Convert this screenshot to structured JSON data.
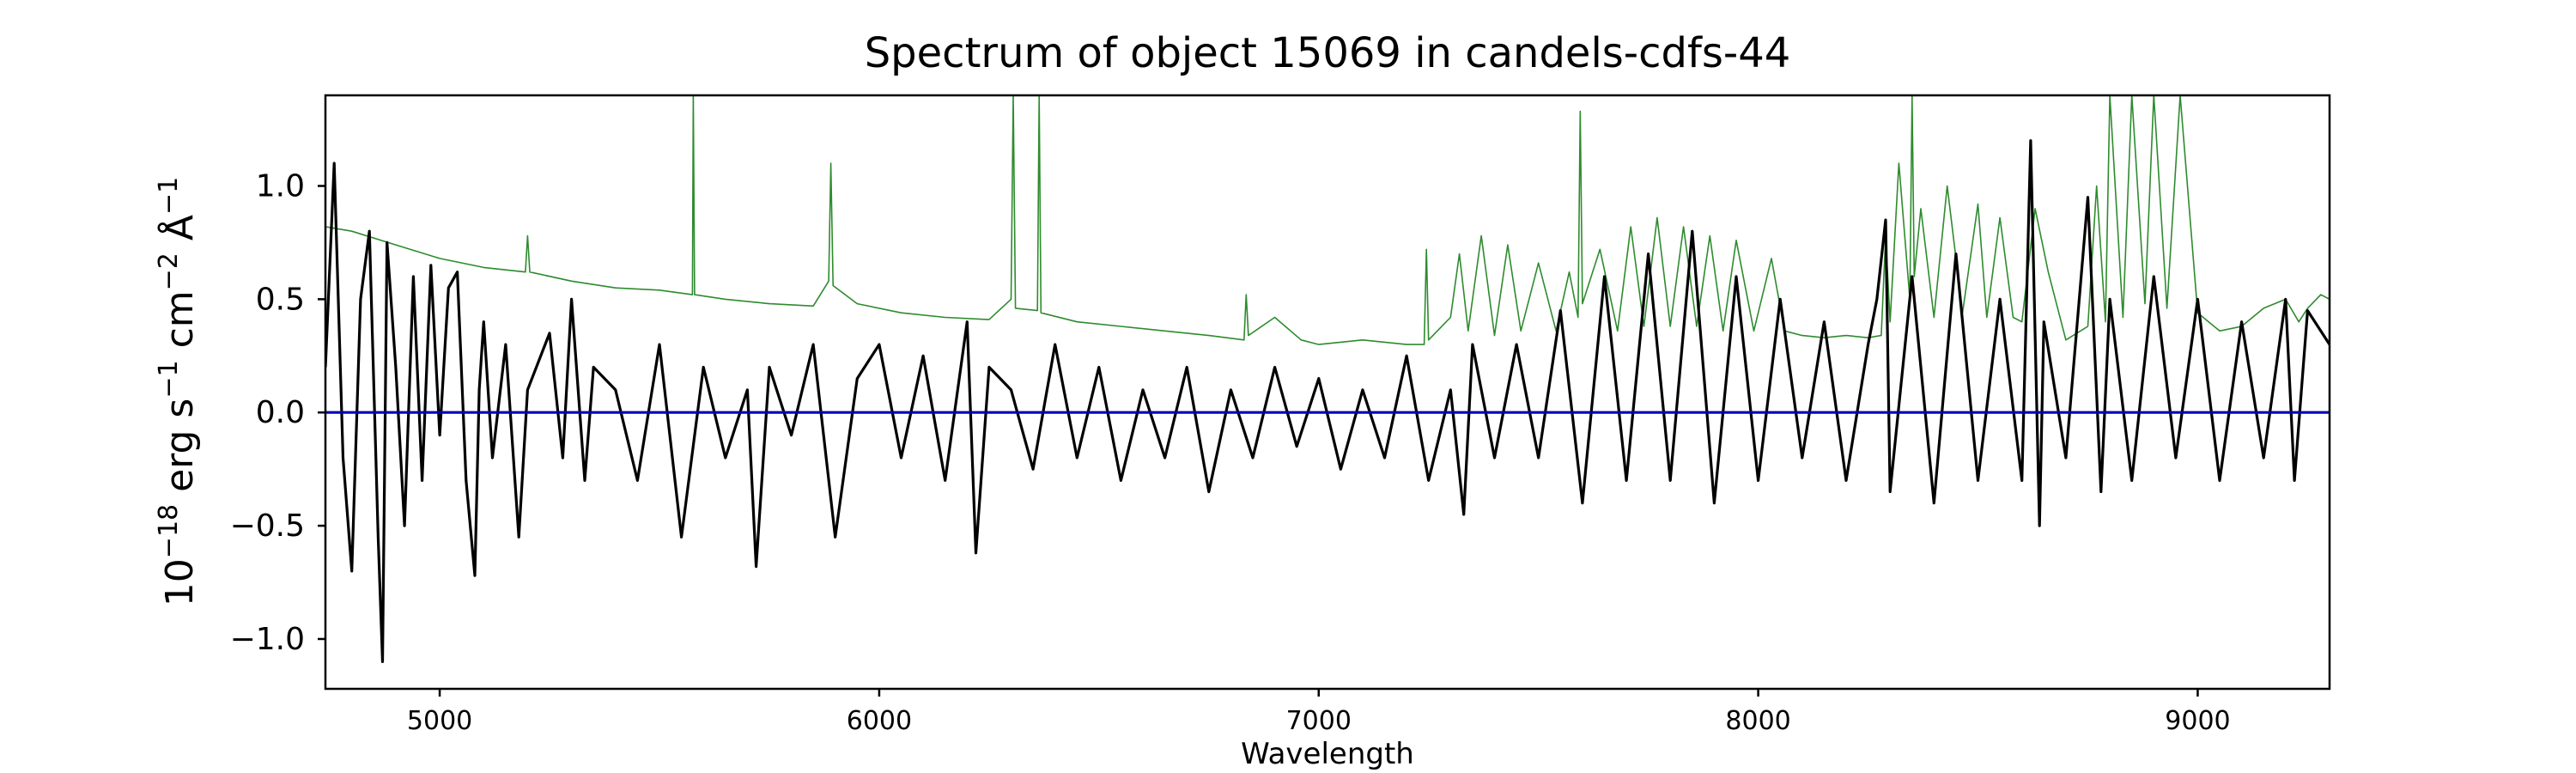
{
  "chart_data": {
    "type": "line",
    "title": "Spectrum of object 15069 in candels-cdfs-44",
    "xlabel": "Wavelength",
    "ylabel_base": "10",
    "ylabel_exp": "−18",
    "ylabel_rest": " erg s",
    "ylabel_unit_exp1": "−1",
    "ylabel_cm": " cm",
    "ylabel_unit_exp2": "−2",
    "ylabel_ang": " Å",
    "ylabel_unit_exp3": "−1",
    "xlim": [
      4740,
      9300
    ],
    "ylim": [
      -1.22,
      1.4
    ],
    "x_ticks": [
      5000,
      6000,
      7000,
      8000,
      9000
    ],
    "x_tick_labels": [
      "5000",
      "6000",
      "7000",
      "8000",
      "9000"
    ],
    "y_ticks": [
      -1.0,
      -0.5,
      0.0,
      0.5,
      1.0
    ],
    "y_tick_labels": [
      "−1.0",
      "−0.5",
      "0.0",
      "0.5",
      "1.0"
    ],
    "grid": false,
    "colors": {
      "flux": "#000000",
      "sky": "#2e8b2e",
      "zero": "#0000bb"
    },
    "series": [
      {
        "key": "sky",
        "x": [
          4740,
          4800,
          4900,
          5000,
          5100,
          5195,
          5200,
          5205,
          5300,
          5400,
          5500,
          5575,
          5577,
          5580,
          5650,
          5750,
          5850,
          5885,
          5890,
          5895,
          5950,
          6050,
          6150,
          6250,
          6300,
          6305,
          6310,
          6360,
          6364,
          6368,
          6450,
          6550,
          6650,
          6750,
          6830,
          6835,
          6840,
          6900,
          6960,
          7000,
          7100,
          7200,
          7240,
          7245,
          7250,
          7300,
          7320,
          7340,
          7370,
          7400,
          7430,
          7460,
          7500,
          7540,
          7570,
          7590,
          7595,
          7600,
          7640,
          7680,
          7710,
          7740,
          7770,
          7800,
          7830,
          7860,
          7890,
          7920,
          7950,
          7990,
          8030,
          8060,
          8100,
          8150,
          8200,
          8250,
          8280,
          8290,
          8300,
          8320,
          8345,
          8350,
          8355,
          8370,
          8400,
          8430,
          8465,
          8500,
          8520,
          8550,
          8580,
          8600,
          8630,
          8660,
          8700,
          8750,
          8770,
          8790,
          8800,
          8830,
          8850,
          8880,
          8900,
          8930,
          8960,
          9000,
          9050,
          9100,
          9150,
          9200,
          9230,
          9250,
          9280,
          9300
        ],
        "y": [
          0.82,
          0.8,
          0.74,
          0.68,
          0.64,
          0.62,
          0.78,
          0.62,
          0.58,
          0.55,
          0.54,
          0.52,
          1.4,
          0.52,
          0.5,
          0.48,
          0.47,
          0.58,
          1.1,
          0.56,
          0.48,
          0.44,
          0.42,
          0.41,
          0.5,
          1.4,
          0.46,
          0.45,
          1.4,
          0.44,
          0.4,
          0.38,
          0.36,
          0.34,
          0.32,
          0.52,
          0.34,
          0.42,
          0.32,
          0.3,
          0.32,
          0.3,
          0.3,
          0.72,
          0.32,
          0.42,
          0.7,
          0.36,
          0.78,
          0.34,
          0.74,
          0.36,
          0.66,
          0.36,
          0.62,
          0.42,
          1.33,
          0.48,
          0.72,
          0.36,
          0.82,
          0.38,
          0.86,
          0.38,
          0.82,
          0.38,
          0.78,
          0.36,
          0.76,
          0.36,
          0.68,
          0.36,
          0.34,
          0.33,
          0.34,
          0.33,
          0.34,
          0.78,
          0.4,
          1.1,
          0.5,
          1.4,
          0.6,
          0.9,
          0.42,
          1.0,
          0.44,
          0.92,
          0.42,
          0.86,
          0.42,
          0.4,
          0.9,
          0.62,
          0.32,
          0.38,
          1.0,
          0.4,
          1.4,
          0.42,
          1.4,
          0.48,
          1.4,
          0.46,
          1.4,
          0.44,
          0.36,
          0.38,
          0.46,
          0.5,
          0.4,
          0.46,
          0.52,
          0.5
        ]
      },
      {
        "key": "flux",
        "x": [
          4740,
          4760,
          4780,
          4800,
          4820,
          4840,
          4860,
          4870,
          4880,
          4900,
          4920,
          4940,
          4960,
          4980,
          5000,
          5020,
          5040,
          5060,
          5080,
          5090,
          5100,
          5120,
          5150,
          5180,
          5200,
          5250,
          5280,
          5300,
          5330,
          5350,
          5400,
          5450,
          5500,
          5550,
          5600,
          5650,
          5700,
          5720,
          5750,
          5800,
          5850,
          5900,
          5950,
          6000,
          6050,
          6100,
          6150,
          6200,
          6220,
          6250,
          6300,
          6350,
          6400,
          6450,
          6500,
          6550,
          6600,
          6650,
          6700,
          6750,
          6800,
          6850,
          6900,
          6950,
          7000,
          7050,
          7100,
          7150,
          7200,
          7250,
          7300,
          7330,
          7350,
          7400,
          7450,
          7500,
          7550,
          7600,
          7650,
          7700,
          7750,
          7800,
          7850,
          7900,
          7950,
          8000,
          8050,
          8100,
          8150,
          8200,
          8250,
          8270,
          8290,
          8300,
          8350,
          8400,
          8450,
          8500,
          8550,
          8600,
          8620,
          8640,
          8650,
          8700,
          8750,
          8780,
          8800,
          8850,
          8900,
          8950,
          9000,
          9050,
          9100,
          9150,
          9200,
          9220,
          9250,
          9300
        ],
        "y": [
          0.2,
          1.1,
          -0.2,
          -0.7,
          0.5,
          0.8,
          -0.55,
          -1.1,
          0.75,
          0.2,
          -0.5,
          0.6,
          -0.3,
          0.65,
          -0.1,
          0.55,
          0.62,
          -0.3,
          -0.72,
          0.1,
          0.4,
          -0.2,
          0.3,
          -0.55,
          0.1,
          0.35,
          -0.2,
          0.5,
          -0.3,
          0.2,
          0.1,
          -0.3,
          0.3,
          -0.55,
          0.2,
          -0.2,
          0.1,
          -0.68,
          0.2,
          -0.1,
          0.3,
          -0.55,
          0.15,
          0.3,
          -0.2,
          0.25,
          -0.3,
          0.4,
          -0.62,
          0.2,
          0.1,
          -0.25,
          0.3,
          -0.2,
          0.2,
          -0.3,
          0.1,
          -0.2,
          0.2,
          -0.35,
          0.1,
          -0.2,
          0.2,
          -0.15,
          0.15,
          -0.25,
          0.1,
          -0.2,
          0.25,
          -0.3,
          0.1,
          -0.45,
          0.3,
          -0.2,
          0.3,
          -0.2,
          0.45,
          -0.4,
          0.6,
          -0.3,
          0.7,
          -0.3,
          0.8,
          -0.4,
          0.6,
          -0.3,
          0.5,
          -0.2,
          0.4,
          -0.3,
          0.3,
          0.5,
          0.85,
          -0.35,
          0.6,
          -0.4,
          0.7,
          -0.3,
          0.5,
          -0.3,
          1.2,
          -0.5,
          0.4,
          -0.2,
          0.95,
          -0.35,
          0.5,
          -0.3,
          0.6,
          -0.2,
          0.5,
          -0.3,
          0.4,
          -0.2,
          0.5,
          -0.3,
          0.45,
          0.3
        ]
      },
      {
        "key": "zero",
        "x": [
          4740,
          9300
        ],
        "y": [
          0.0,
          0.0
        ]
      }
    ]
  }
}
